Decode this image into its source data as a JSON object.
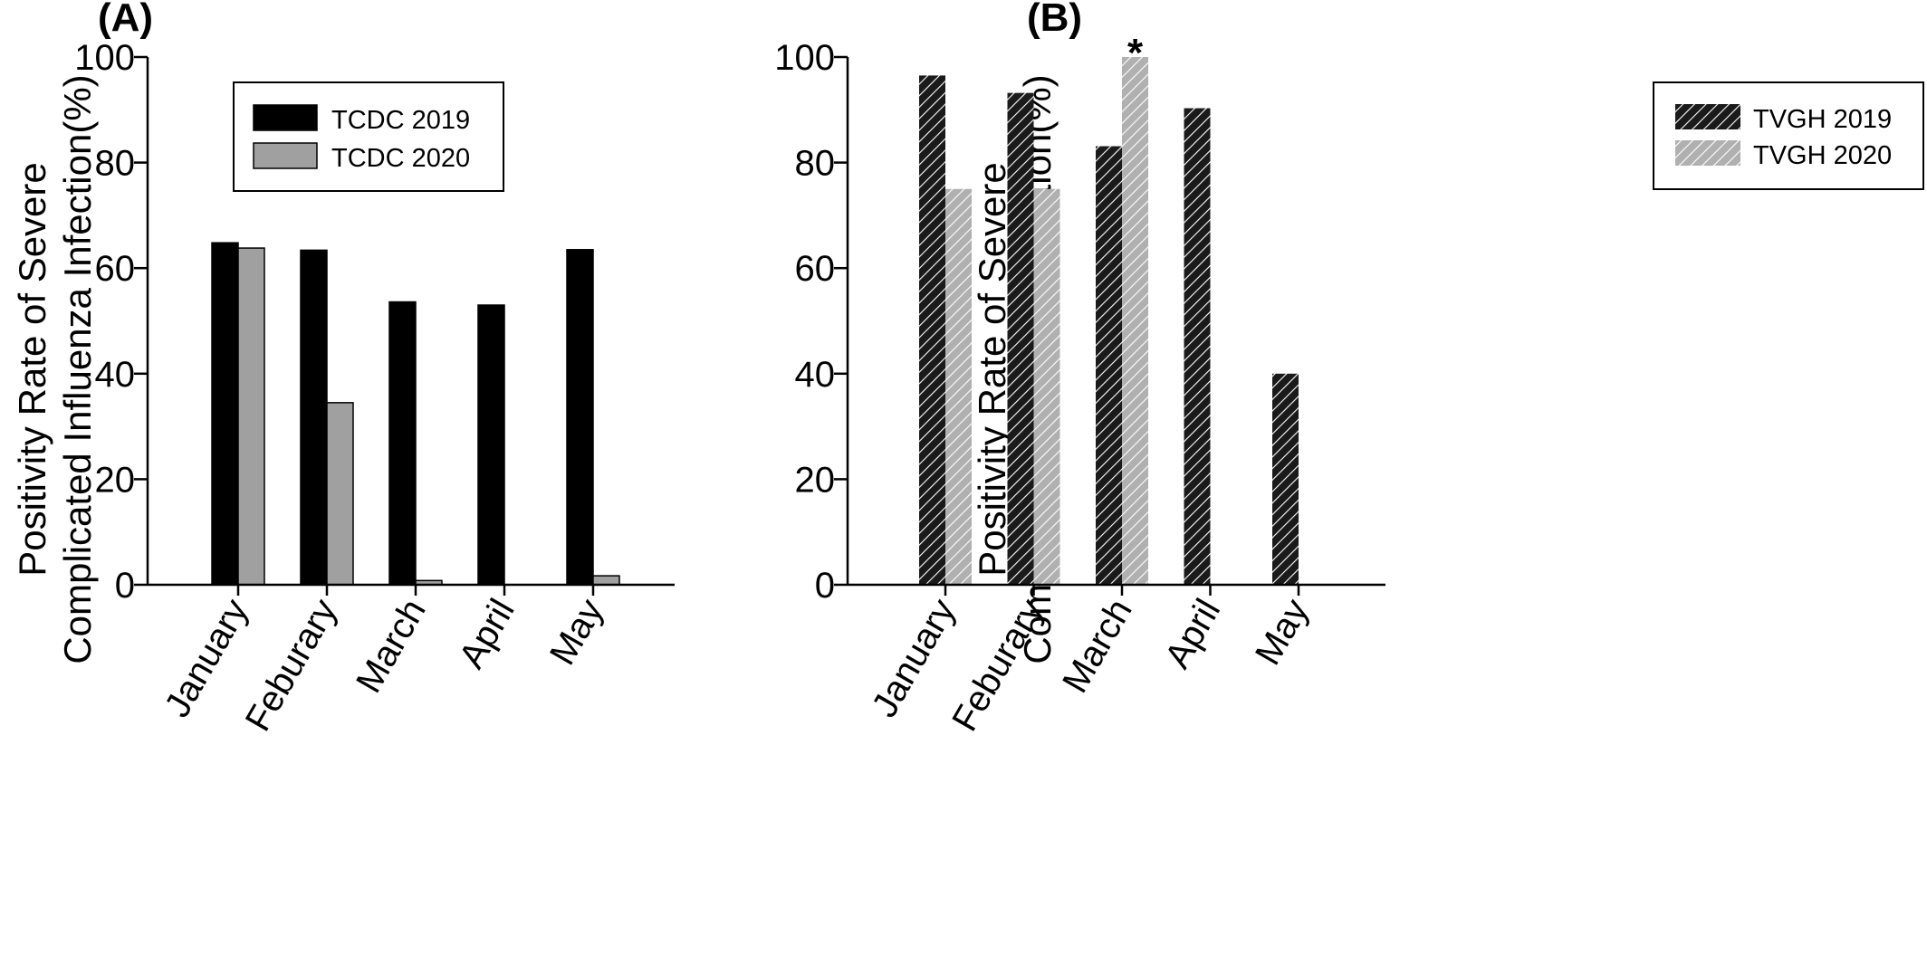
{
  "panels": [
    {
      "label": "(A)",
      "chart_data": {
        "type": "bar",
        "categories": [
          "January",
          "Feburary",
          "March",
          "April",
          "May"
        ],
        "series": [
          {
            "name": "TCDC 2019",
            "values": [
              64.8,
              63.4,
              53.6,
              53.0,
              63.5
            ],
            "color": "#000000",
            "pattern": "solid"
          },
          {
            "name": "TCDC 2020",
            "values": [
              63.8,
              34.5,
              0.8,
              0,
              1.7
            ],
            "color": "#a0a0a0",
            "pattern": "solid"
          }
        ],
        "ylabel_line1": "Positivity Rate of Severe",
        "ylabel_line2": "Complicated Influenza Infection(%)",
        "ylim": [
          0,
          100
        ],
        "yticks": [
          "0",
          "20",
          "40",
          "60",
          "80",
          "100"
        ],
        "legend_position": "top-left",
        "annotations": []
      }
    },
    {
      "label": "(B)",
      "chart_data": {
        "type": "bar",
        "categories": [
          "January",
          "Feburary",
          "March",
          "April",
          "May"
        ],
        "series": [
          {
            "name": "TVGH 2019",
            "values": [
              96.5,
              93.2,
              83.1,
              90.3,
              40.0
            ],
            "color": "#1a1a1a",
            "pattern": "hatch"
          },
          {
            "name": "TVGH 2020",
            "values": [
              75.0,
              75.0,
              100.0,
              0,
              0
            ],
            "color": "#b0b0b0",
            "pattern": "hatch"
          }
        ],
        "ylabel_line1": "Positivity Rate of Severe",
        "ylabel_line2": "Complicated Influenza Infection(%)",
        "ylim": [
          0,
          100
        ],
        "yticks": [
          "0",
          "20",
          "40",
          "60",
          "80",
          "100"
        ],
        "legend_position": "top-right",
        "annotations": [
          {
            "text": "*",
            "category": "March",
            "series": 1
          }
        ]
      }
    }
  ]
}
